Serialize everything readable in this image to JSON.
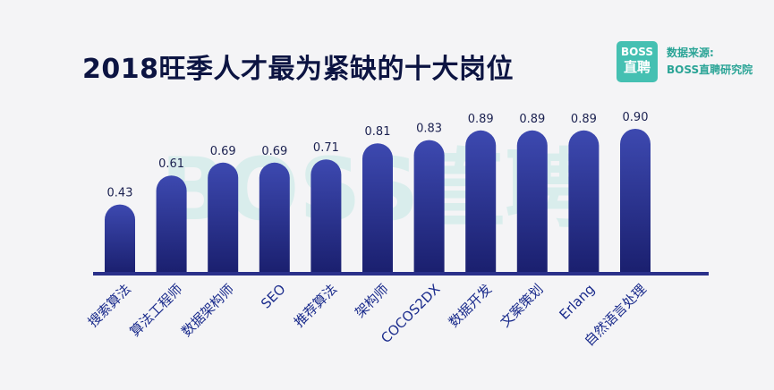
{
  "title": "2018旺季人才最为紧缺的十大岗位",
  "logo": {
    "line1": "BOSS",
    "line2": "直聘"
  },
  "source": {
    "label": "数据来源:",
    "name": "BOSS直聘研究院"
  },
  "watermark": "BOSS直聘",
  "colors": {
    "bar_top": "#3d49b0",
    "bar_bottom": "#1a1f6e",
    "axis": "#2a308a",
    "brand": "#45c0b2"
  },
  "chart_data": {
    "type": "bar",
    "title": "2018旺季人才最为紧缺的十大岗位",
    "xlabel": "",
    "ylabel": "",
    "ylim": [
      0,
      1
    ],
    "grid": false,
    "categories": [
      "搜索算法",
      "算法工程师",
      "数据架构师",
      "SEO",
      "推荐算法",
      "架构师",
      "COCOS2DX",
      "数据开发",
      "文案策划",
      "Erlang",
      "自然语言处理"
    ],
    "values": [
      0.43,
      0.61,
      0.69,
      0.69,
      0.71,
      0.81,
      0.83,
      0.89,
      0.89,
      0.89,
      0.9
    ],
    "labels": [
      "0.43",
      "0.61",
      "0.69",
      "0.69",
      "0.71",
      "0.81",
      "0.83",
      "0.89",
      "0.89",
      "0.89",
      "0.90"
    ]
  }
}
